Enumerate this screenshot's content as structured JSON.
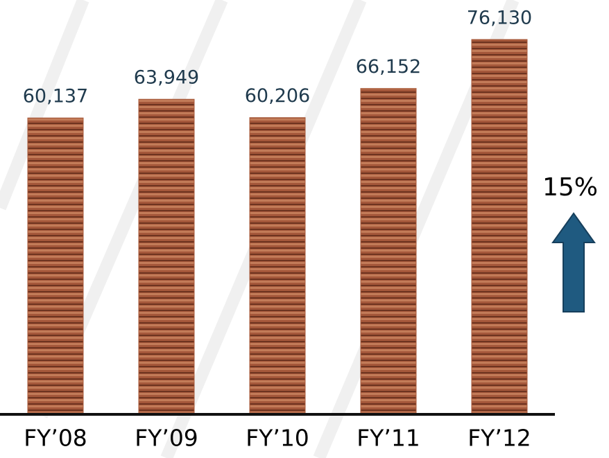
{
  "chart_data": {
    "type": "bar",
    "categories": [
      "FY’08",
      "FY’09",
      "FY’10",
      "FY’11",
      "FY’12"
    ],
    "values": [
      60137,
      63949,
      60206,
      66152,
      76130
    ],
    "value_labels": [
      "60,137",
      "63,949",
      "60,206",
      "66,152",
      "76,130"
    ],
    "color": "#a85a3a",
    "annotation": "15%"
  }
}
